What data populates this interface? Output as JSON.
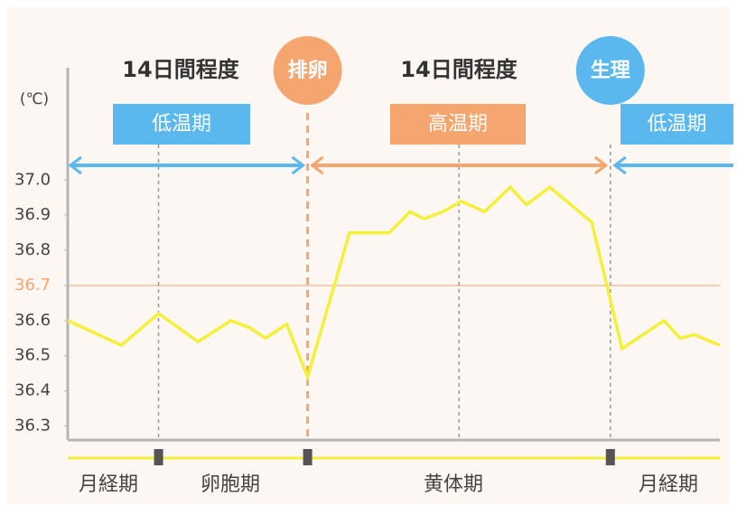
{
  "chart_data": {
    "type": "line",
    "y_unit": "(℃)",
    "x": [
      0,
      2.3,
      3.9,
      5.6,
      7.0,
      7.8,
      8.5,
      9.4,
      10.3,
      12.1,
      13.8,
      14.7,
      15.3,
      16.1,
      16.9,
      17.9,
      19.0,
      19.7,
      20.7,
      22.5,
      23.8,
      25.6,
      26.3,
      26.9,
      28
    ],
    "values": [
      36.6,
      36.53,
      36.62,
      36.54,
      36.6,
      36.58,
      36.55,
      36.59,
      36.44,
      36.85,
      36.85,
      36.91,
      36.89,
      36.91,
      36.94,
      36.91,
      36.98,
      36.93,
      36.98,
      36.88,
      36.52,
      36.6,
      36.55,
      36.56,
      36.53
    ],
    "color": "#f4f03a",
    "xlim": [
      0,
      28
    ],
    "ylim": [
      36.26,
      37.32
    ],
    "yticks": [
      {
        "value": 37,
        "label": "37.0"
      },
      36.9,
      36.8,
      36.7,
      36.6,
      36.5,
      36.4,
      36.3
    ],
    "reference_line": {
      "value": 36.7,
      "color": "#f5a66e"
    },
    "dividers": [
      {
        "x": 3.9,
        "color": "#999999"
      },
      {
        "x": 10.3,
        "color": "#f5a66e"
      },
      {
        "x": 16.8,
        "color": "#999999"
      },
      {
        "x": 23.3,
        "color": "#999999"
      }
    ],
    "duration_labels": [
      "14日間程度",
      "14日間程度"
    ],
    "phase_boxes": [
      {
        "label": "低温期",
        "color": "#5bb8ef"
      },
      {
        "label": "高温期",
        "color": "#f5a66e"
      },
      {
        "label": "低温期",
        "color": "#5bb8ef"
      }
    ],
    "events": [
      {
        "label": "排卵",
        "color": "#f5a66e"
      },
      {
        "label": "生理",
        "color": "#5bb8ef"
      }
    ],
    "phases": [
      "月経期",
      "卵胞期",
      "黄体期",
      "月経期"
    ]
  }
}
